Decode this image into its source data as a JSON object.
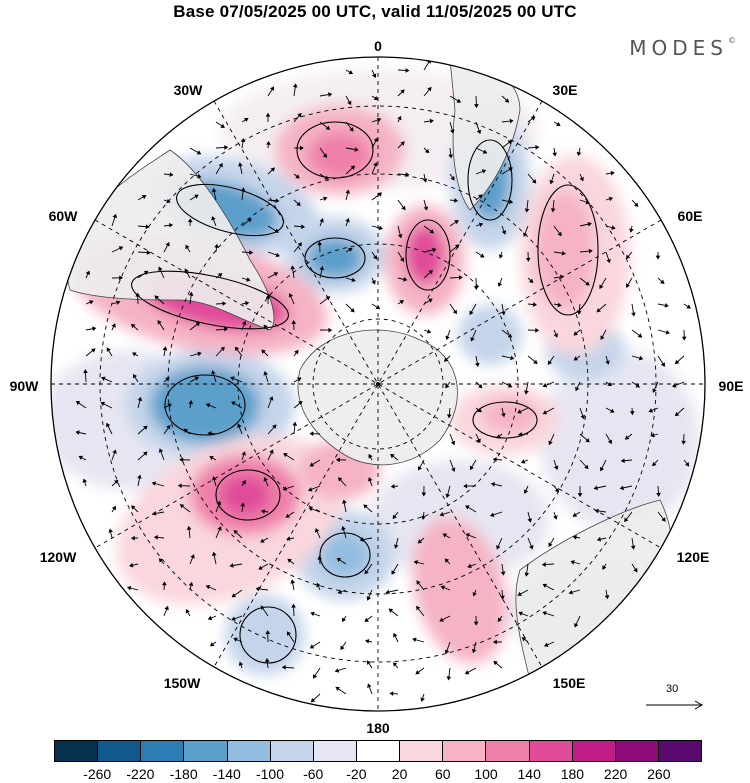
{
  "title": "Base 07/05/2025 00 UTC, valid 11/05/2025 00 UTC",
  "brand": {
    "text": "MODES",
    "mark": "©"
  },
  "longitude_labels": {
    "top": "0",
    "bottom": "180",
    "left": "90W",
    "right": "90E",
    "nw30": "30W",
    "ne30": "30E",
    "nw60": "60W",
    "ne60": "60E",
    "sw120": "120W",
    "se120": "120E",
    "sw150": "150W",
    "se150": "150E"
  },
  "reference_vector": {
    "value": "30"
  },
  "colorbar": {
    "colors": [
      "#08304f",
      "#0f5a8a",
      "#2d7db4",
      "#5b9fcb",
      "#93bde0",
      "#c4d4ea",
      "#e6e6f2",
      "#ffffff",
      "#f9d7dc",
      "#f5b3c4",
      "#ef80aa",
      "#e04c9a",
      "#c11b86",
      "#8c0b78",
      "#5a0a6e"
    ],
    "ticks": [
      "-260",
      "-220",
      "-180",
      "-140",
      "-100",
      "-60",
      "-20",
      "20",
      "60",
      "100",
      "140",
      "180",
      "220",
      "260"
    ]
  },
  "map": {
    "projection": "south-polar-stereographic",
    "center_longitude_top": "0",
    "land_color": "#ededed",
    "graticule": "dashed",
    "field_colors": {
      "positive": "#ef80aa",
      "negative": "#5b9fcb"
    }
  }
}
